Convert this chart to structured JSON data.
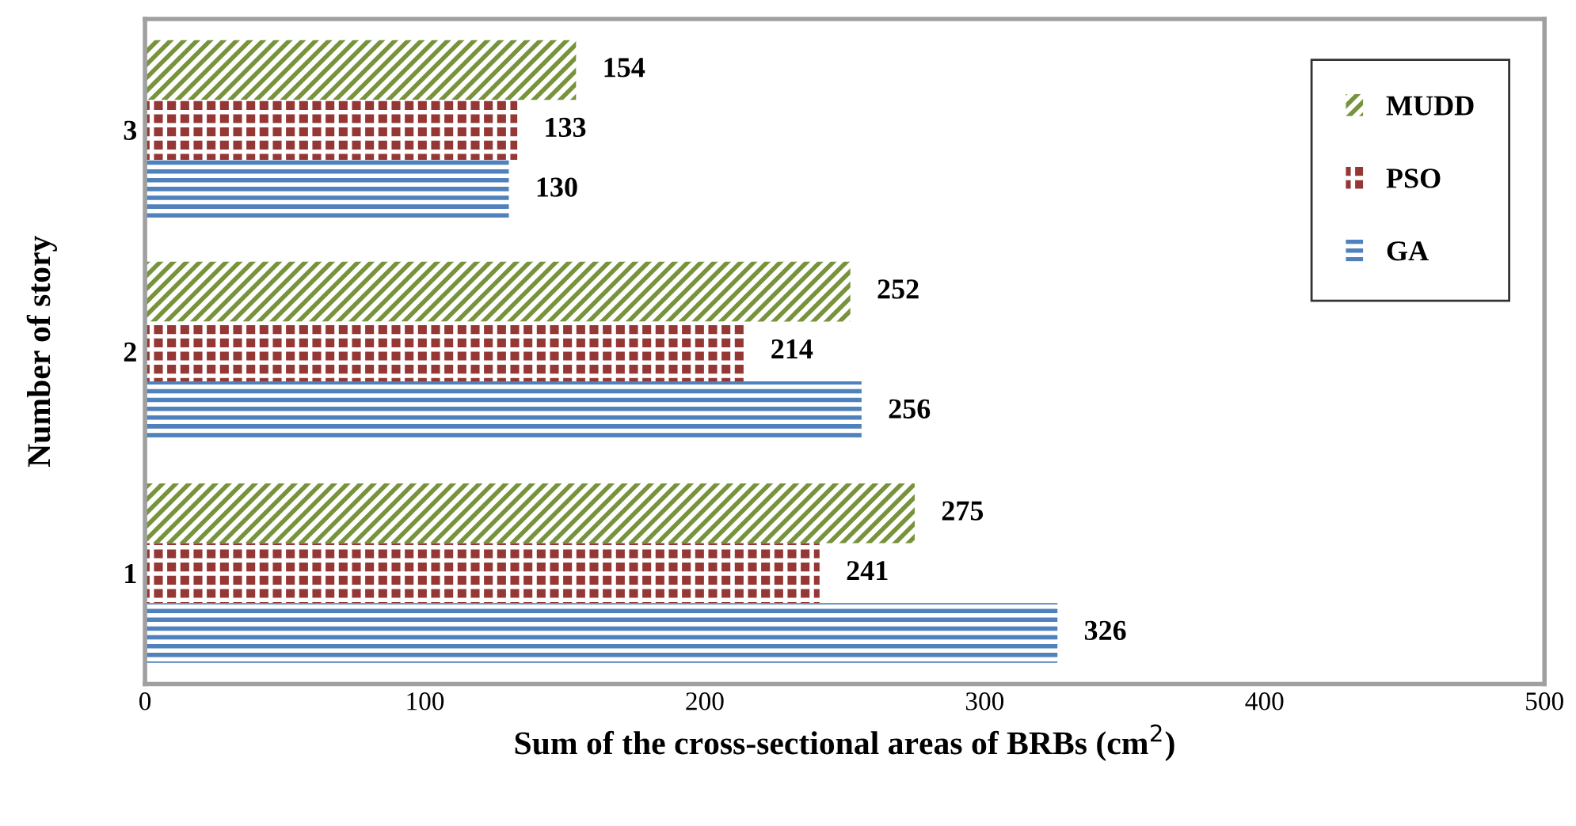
{
  "chart_data": {
    "type": "bar",
    "orientation": "horizontal",
    "xlabel": "Sum of the cross-sectional areas of BRBs (cm$^{2}$)",
    "ylabel": "Number of story",
    "categories": [
      "3",
      "2",
      "1"
    ],
    "series": [
      {
        "name": "MUDD",
        "color": "#77933c",
        "values": [
          154,
          252,
          275
        ]
      },
      {
        "name": "PSO",
        "color": "#953735",
        "values": [
          133,
          214,
          241
        ]
      },
      {
        "name": "GA",
        "color": "#4f81bd",
        "values": [
          130,
          256,
          326
        ]
      }
    ],
    "xlim": [
      0,
      500
    ],
    "xticks": [
      0,
      100,
      200,
      300,
      400,
      500
    ],
    "grid": false,
    "legend": "top right",
    "data_labels": true
  }
}
